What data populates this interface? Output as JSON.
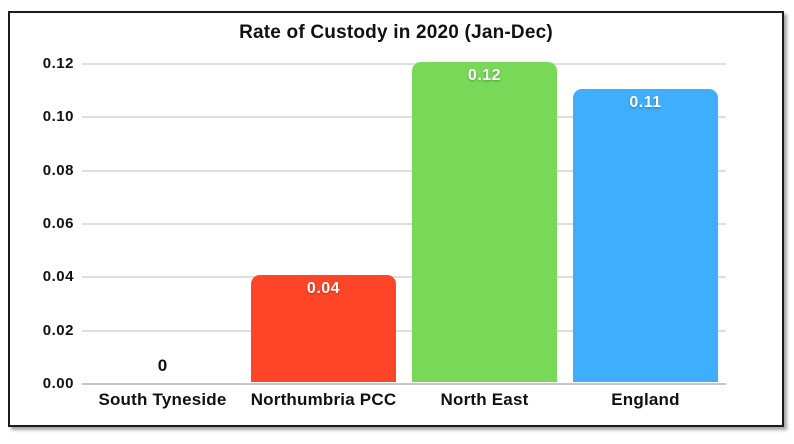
{
  "chart_data": {
    "type": "bar",
    "title": "Rate of Custody in 2020 (Jan-Dec)",
    "categories": [
      "South Tyneside",
      "Northumbria PCC",
      "North East",
      "England"
    ],
    "values": [
      0,
      0.04,
      0.12,
      0.11
    ],
    "value_labels": [
      "0",
      "0.04",
      "0.12",
      "0.11"
    ],
    "bar_colors": [
      null,
      "#FF4527",
      "#77D957",
      "#3FAEFC"
    ],
    "xlabel": "",
    "ylabel": "",
    "ylim": [
      0,
      0.12
    ],
    "ytick_labels": [
      "0.00",
      "0.02",
      "0.04",
      "0.06",
      "0.08",
      "0.10",
      "0.12"
    ],
    "grid": true,
    "legend": null,
    "value_label_color_inside": "#ffffff",
    "value_label_color_zero": "#111111",
    "gridline_color": "#dedede",
    "frame_border_color": "#1c1c1c",
    "background_color": "#ffffff"
  }
}
